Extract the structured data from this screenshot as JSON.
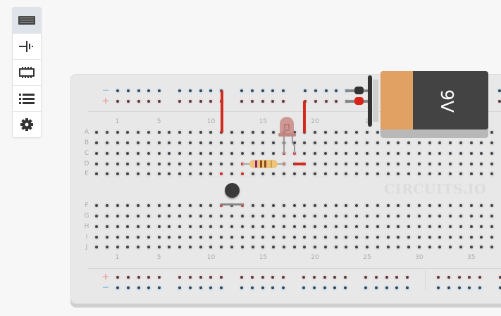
{
  "sidebar": {
    "items": [
      {
        "icon": "breadboard-icon",
        "active": true
      },
      {
        "icon": "battery-symbol-icon",
        "active": false
      },
      {
        "icon": "chip-icon",
        "active": false
      },
      {
        "icon": "list-icon",
        "active": false
      },
      {
        "icon": "gear-icon",
        "active": false
      }
    ]
  },
  "breadboard": {
    "row_labels_top": [
      "A",
      "B",
      "C",
      "D",
      "E"
    ],
    "row_labels_bottom": [
      "F",
      "G",
      "H",
      "I",
      "J"
    ],
    "column_labels_top": [
      "1",
      "5",
      "10",
      "15",
      "20",
      "2"
    ],
    "column_labels_bottom": [
      "1",
      "5",
      "10",
      "15",
      "20",
      "25",
      "30",
      "35"
    ],
    "rail_minus": "−",
    "rail_plus": "+",
    "watermark": "CIRCUITS.IO"
  },
  "battery": {
    "label": "9V",
    "colors": {
      "cap": "#e0a162",
      "body": "#434343"
    }
  },
  "colors": {
    "wire": "#d22b1d",
    "hole": "#3d4148",
    "board": "#e8e8e8"
  }
}
